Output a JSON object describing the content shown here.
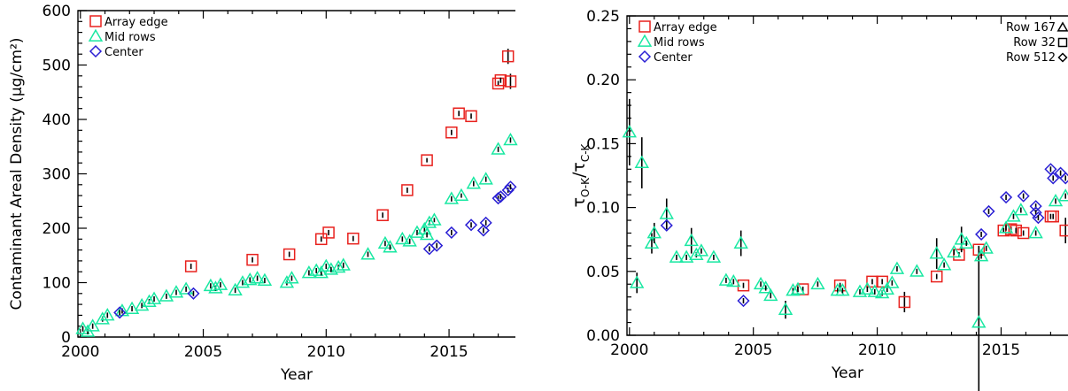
{
  "colors": {
    "array_edge": "#e8211d",
    "mid_rows": "#19e8a2",
    "center": "#2a1fd4"
  },
  "chart_data": [
    {
      "type": "scatter",
      "xlabel": "Year",
      "ylabel": "Contaminant Areal Density (μg/cm²)",
      "xlim": [
        1999.9,
        2017.7
      ],
      "ylim": [
        0,
        600
      ],
      "xticks": [
        2000,
        2005,
        2010,
        2015
      ],
      "yticks": [
        0,
        100,
        200,
        300,
        400,
        500,
        600
      ],
      "legend_position": "top-left",
      "legend": [
        "Array edge",
        "Mid rows",
        "Center"
      ],
      "series": [
        {
          "name": "Array edge",
          "marker": "square",
          "color": "#e8211d",
          "points": [
            [
              2004.5,
              130,
              0
            ],
            [
              2007.0,
              142,
              0
            ],
            [
              2008.5,
              152,
              0
            ],
            [
              2009.8,
              180,
              0
            ],
            [
              2010.1,
              192,
              0
            ],
            [
              2011.1,
              181,
              0
            ],
            [
              2012.3,
              224,
              0
            ],
            [
              2013.3,
              270,
              0
            ],
            [
              2014.1,
              325,
              4
            ],
            [
              2015.1,
              376,
              0
            ],
            [
              2015.4,
              411,
              0
            ],
            [
              2015.9,
              406,
              0
            ],
            [
              2017.0,
              466,
              0
            ],
            [
              2017.1,
              472,
              0
            ],
            [
              2017.4,
              516,
              14
            ],
            [
              2017.5,
              470,
              14
            ]
          ]
        },
        {
          "name": "Mid rows",
          "marker": "triangle",
          "color": "#19e8a2",
          "points": [
            [
              2000.1,
              15,
              0
            ],
            [
              2000.3,
              10,
              0
            ],
            [
              2000.5,
              20,
              0
            ],
            [
              2000.9,
              33,
              0
            ],
            [
              2001.1,
              40,
              0
            ],
            [
              2001.7,
              48,
              0
            ],
            [
              2002.1,
              52,
              0
            ],
            [
              2002.5,
              58,
              0
            ],
            [
              2002.8,
              65,
              0
            ],
            [
              2003.0,
              70,
              0
            ],
            [
              2003.5,
              75,
              0
            ],
            [
              2003.9,
              82,
              0
            ],
            [
              2004.3,
              88,
              0
            ],
            [
              2005.3,
              94,
              0
            ],
            [
              2005.5,
              90,
              0
            ],
            [
              2005.7,
              96,
              0
            ],
            [
              2006.3,
              86,
              0
            ],
            [
              2006.6,
              100,
              0
            ],
            [
              2006.9,
              105,
              0
            ],
            [
              2007.2,
              108,
              0
            ],
            [
              2007.5,
              104,
              0
            ],
            [
              2008.4,
              100,
              0
            ],
            [
              2008.6,
              108,
              0
            ],
            [
              2009.3,
              118,
              0
            ],
            [
              2009.6,
              122,
              0
            ],
            [
              2009.8,
              118,
              0
            ],
            [
              2010.0,
              130,
              0
            ],
            [
              2010.2,
              124,
              0
            ],
            [
              2010.5,
              128,
              0
            ],
            [
              2010.7,
              132,
              0
            ],
            [
              2011.7,
              152,
              0
            ],
            [
              2012.4,
              172,
              0
            ],
            [
              2012.6,
              165,
              0
            ],
            [
              2013.1,
              180,
              0
            ],
            [
              2013.4,
              176,
              0
            ],
            [
              2013.7,
              192,
              0
            ],
            [
              2014.0,
              198,
              0
            ],
            [
              2014.2,
              210,
              0
            ],
            [
              2014.4,
              215,
              4
            ],
            [
              2014.1,
              188,
              0
            ],
            [
              2015.1,
              254,
              0
            ],
            [
              2015.5,
              260,
              4
            ],
            [
              2016.0,
              282,
              0
            ],
            [
              2016.5,
              290,
              0
            ],
            [
              2017.0,
              345,
              0
            ],
            [
              2017.5,
              362,
              0
            ]
          ]
        },
        {
          "name": "Center",
          "marker": "diamond",
          "color": "#2a1fd4",
          "points": [
            [
              2001.6,
              45,
              0
            ],
            [
              2004.6,
              80,
              0
            ],
            [
              2014.2,
              162,
              0
            ],
            [
              2014.5,
              168,
              0
            ],
            [
              2015.1,
              192,
              0
            ],
            [
              2015.9,
              206,
              0
            ],
            [
              2016.4,
              196,
              0
            ],
            [
              2016.5,
              210,
              0
            ],
            [
              2017.0,
              255,
              0
            ],
            [
              2017.1,
              258,
              0
            ],
            [
              2017.4,
              270,
              0
            ],
            [
              2017.5,
              276,
              0
            ]
          ]
        }
      ]
    },
    {
      "type": "scatter",
      "xlabel": "Year",
      "ylabel": "τO-K/τC-K",
      "ylabel_main": "τ",
      "ylabel_sub1": "O-K",
      "ylabel_slash": "/τ",
      "ylabel_sub2": "C-K",
      "xlim": [
        1999.9,
        2017.7
      ],
      "ylim": [
        0,
        0.25
      ],
      "xticks": [
        2000,
        2005,
        2010,
        2015
      ],
      "yticks": [
        0.0,
        0.05,
        0.1,
        0.15,
        0.2,
        0.25
      ],
      "legend_position": "top-left",
      "legend": [
        "Array edge",
        "Mid rows",
        "Center"
      ],
      "row_key": [
        {
          "label": "Row 167",
          "marker": "triangle"
        },
        {
          "label": "Row 32",
          "marker": "square"
        },
        {
          "label": "Row 512",
          "marker": "diamond"
        }
      ],
      "series": [
        {
          "name": "Array edge",
          "marker": "square",
          "color": "#e8211d",
          "points": [
            [
              2004.6,
              0.039,
              0
            ],
            [
              2007.0,
              0.036,
              0
            ],
            [
              2008.5,
              0.039,
              0
            ],
            [
              2009.8,
              0.042,
              0
            ],
            [
              2010.2,
              0.042,
              0
            ],
            [
              2011.1,
              0.026,
              0.008
            ],
            [
              2012.4,
              0.046,
              0
            ],
            [
              2013.3,
              0.063,
              0
            ],
            [
              2014.1,
              0.067,
              0
            ],
            [
              2015.1,
              0.082,
              0
            ],
            [
              2015.4,
              0.083,
              0
            ],
            [
              2015.6,
              0.082,
              0
            ],
            [
              2015.9,
              0.08,
              0
            ],
            [
              2017.0,
              0.093,
              0
            ],
            [
              2017.1,
              0.093,
              0
            ],
            [
              2017.6,
              0.082,
              0.01
            ]
          ]
        },
        {
          "name": "Mid rows",
          "marker": "triangle",
          "color": "#19e8a2",
          "points": [
            [
              2000.0,
              0.159,
              0.026
            ],
            [
              2000.3,
              0.041,
              0.008
            ],
            [
              2000.5,
              0.135,
              0.02
            ],
            [
              2000.9,
              0.072,
              0.008
            ],
            [
              2001.0,
              0.08,
              0.008
            ],
            [
              2001.5,
              0.095,
              0.012
            ],
            [
              2001.9,
              0.061,
              0
            ],
            [
              2002.3,
              0.061,
              0
            ],
            [
              2002.5,
              0.074,
              0.01
            ],
            [
              2002.7,
              0.063,
              0
            ],
            [
              2002.9,
              0.066,
              0
            ],
            [
              2003.4,
              0.061,
              0
            ],
            [
              2003.9,
              0.043,
              0
            ],
            [
              2004.2,
              0.042,
              0
            ],
            [
              2004.5,
              0.072,
              0.01
            ],
            [
              2005.3,
              0.04,
              0
            ],
            [
              2005.5,
              0.037,
              0
            ],
            [
              2005.7,
              0.031,
              0
            ],
            [
              2006.3,
              0.02,
              0.007
            ],
            [
              2006.6,
              0.035,
              0
            ],
            [
              2006.8,
              0.036,
              0
            ],
            [
              2007.6,
              0.04,
              0
            ],
            [
              2008.4,
              0.035,
              0
            ],
            [
              2008.6,
              0.035,
              0
            ],
            [
              2009.3,
              0.034,
              0
            ],
            [
              2009.6,
              0.036,
              0
            ],
            [
              2009.9,
              0.034,
              0
            ],
            [
              2010.2,
              0.033,
              0
            ],
            [
              2010.4,
              0.036,
              0
            ],
            [
              2010.6,
              0.041,
              0
            ],
            [
              2010.8,
              0.052,
              0
            ],
            [
              2011.6,
              0.05,
              0
            ],
            [
              2012.4,
              0.064,
              0.012
            ],
            [
              2012.7,
              0.055,
              0
            ],
            [
              2013.1,
              0.065,
              0
            ],
            [
              2013.4,
              0.075,
              0.01
            ],
            [
              2013.6,
              0.072,
              0
            ],
            [
              2014.1,
              0.01,
              0.06
            ],
            [
              2014.2,
              0.062,
              0
            ],
            [
              2014.4,
              0.068,
              0
            ],
            [
              2015.2,
              0.084,
              0
            ],
            [
              2015.5,
              0.093,
              0
            ],
            [
              2015.8,
              0.098,
              0
            ],
            [
              2016.4,
              0.08,
              0
            ],
            [
              2017.2,
              0.105,
              0
            ],
            [
              2017.6,
              0.109,
              0
            ]
          ]
        },
        {
          "name": "Center",
          "marker": "diamond",
          "color": "#2a1fd4",
          "points": [
            [
              2001.5,
              0.086,
              0
            ],
            [
              2004.6,
              0.027,
              0
            ],
            [
              2014.2,
              0.079,
              0
            ],
            [
              2014.5,
              0.097,
              0
            ],
            [
              2015.2,
              0.108,
              0
            ],
            [
              2015.9,
              0.109,
              0
            ],
            [
              2016.4,
              0.101,
              0
            ],
            [
              2016.4,
              0.096,
              0
            ],
            [
              2016.5,
              0.092,
              0
            ],
            [
              2017.0,
              0.13,
              0
            ],
            [
              2017.1,
              0.123,
              0
            ],
            [
              2017.4,
              0.127,
              0
            ],
            [
              2017.6,
              0.123,
              0
            ]
          ]
        }
      ]
    }
  ]
}
